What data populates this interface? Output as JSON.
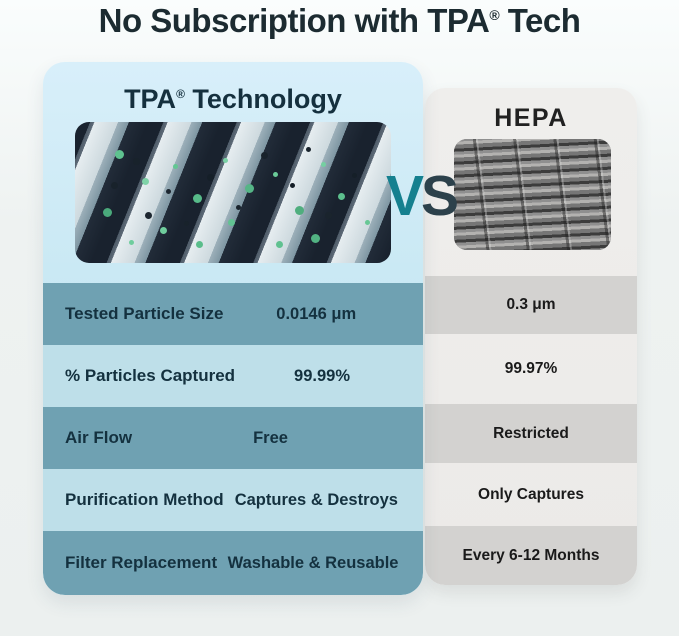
{
  "page": {
    "title_pre": "No Subscription with TPA",
    "title_reg": "®",
    "title_post": " Tech"
  },
  "versus": {
    "v": "V",
    "s": "S"
  },
  "tpa": {
    "title_pre": "TPA",
    "title_reg": "®",
    "title_post": " Technology",
    "rows": [
      {
        "label": "Tested Particle Size",
        "value": "0.0146 μm"
      },
      {
        "label": "% Particles Captured",
        "value": "99.99%"
      },
      {
        "label": "Air Flow",
        "value": "Free"
      },
      {
        "label": "Purification Method",
        "value": "Captures & Destroys"
      },
      {
        "label": "Filter Replacement",
        "value": "Washable & Reusable"
      }
    ]
  },
  "hepa": {
    "title": "HEPA",
    "rows": [
      {
        "value": "0.3 μm"
      },
      {
        "value": "99.97%"
      },
      {
        "value": "Restricted"
      },
      {
        "value": "Only Captures"
      },
      {
        "value": "Every 6-12 Months"
      }
    ]
  },
  "colors": {
    "accent_teal": "#15808f",
    "dark_navy": "#14313f",
    "tpa_row_dark": "#6fa1b2",
    "tpa_row_light": "#bedfe9",
    "tpa_card_top": "#d8effa",
    "tpa_card_bottom": "#bce1ed",
    "hepa_card_bg": "#eceae8",
    "hepa_band_dark": "#d3d2d0",
    "particle_green": "#5ec28f"
  }
}
